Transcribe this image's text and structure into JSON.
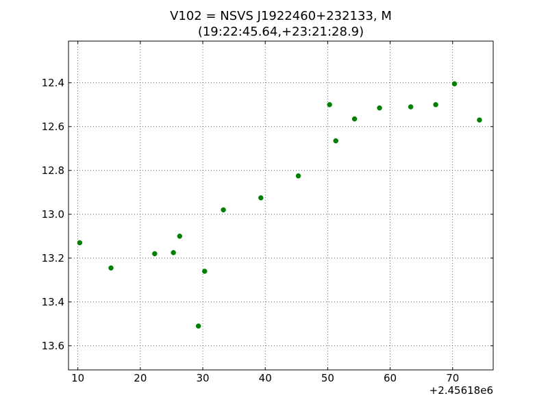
{
  "chart_data": {
    "type": "scatter",
    "title": "V102 = NSVS J1922460+232133, M",
    "subtitle": "(19:22:45.64,+23:21:28.9)",
    "xlabel": "",
    "ylabel": "",
    "x_offset_label": "+2.45618e6",
    "x_offset": 2456180,
    "xlim": [
      8.5,
      76.5
    ],
    "ylim": [
      12.21,
      13.71
    ],
    "y_inverted": true,
    "x_ticks": [
      10,
      20,
      30,
      40,
      50,
      60,
      70
    ],
    "x_tick_labels": [
      "10",
      "20",
      "30",
      "40",
      "50",
      "60",
      "70"
    ],
    "y_ticks": [
      12.4,
      12.6,
      12.8,
      13.0,
      13.2,
      13.4,
      13.6
    ],
    "y_tick_labels": [
      "12.4",
      "12.6",
      "12.8",
      "13.0",
      "13.2",
      "13.4",
      "13.6"
    ],
    "grid": true,
    "marker_color": "#008000",
    "series": [
      {
        "x": [
          10.3,
          15.3,
          22.3,
          25.3,
          26.3,
          29.3,
          30.3,
          33.3,
          39.3,
          45.3,
          50.3,
          51.3,
          54.3,
          58.3,
          63.3,
          67.3,
          70.3,
          74.3
        ],
        "y": [
          13.13,
          13.245,
          13.18,
          13.175,
          13.1,
          13.51,
          13.26,
          12.98,
          12.925,
          12.825,
          12.5,
          12.665,
          12.565,
          12.515,
          12.51,
          12.5,
          12.405,
          12.57
        ]
      }
    ]
  }
}
